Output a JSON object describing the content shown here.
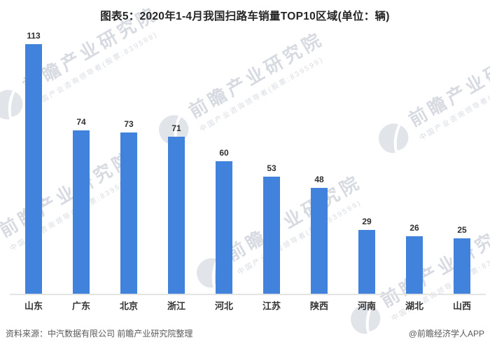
{
  "title": "图表5：2020年1-4月我国扫路车销量TOP10区域(单位：辆)",
  "chart_data": {
    "type": "bar",
    "title": "图表5：2020年1-4月我国扫路车销量TOP10区域(单位：辆)",
    "unit": "辆",
    "categories": [
      "山东",
      "广东",
      "北京",
      "浙江",
      "河北",
      "江苏",
      "陕西",
      "河南",
      "湖北",
      "山西"
    ],
    "values": [
      113,
      74,
      73,
      71,
      60,
      53,
      48,
      29,
      26,
      25
    ],
    "xlabel": "",
    "ylabel": "",
    "ylim": [
      0,
      120
    ],
    "grid": false,
    "legend": false,
    "value_labels": true,
    "bar_color": "#4182dc",
    "axis_line_color": "#e4e4e4"
  },
  "footer": {
    "source": "资料来源：中汽数据有限公司 前瞻产业研究院整理",
    "credit": "@前瞻经济学人APP"
  },
  "watermark": {
    "main": "前瞻产业研究院",
    "sub": "中国产业咨询领导者(股票:839599)",
    "logo": "qianzhan-logo",
    "color": "#b6bec8"
  }
}
